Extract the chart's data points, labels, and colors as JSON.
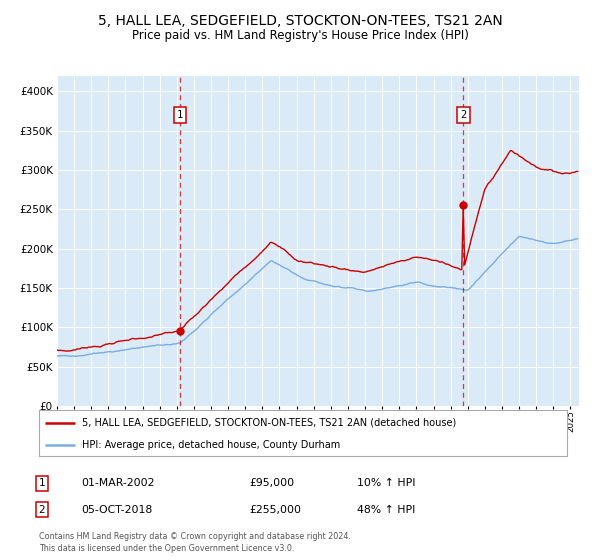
{
  "title": "5, HALL LEA, SEDGEFIELD, STOCKTON-ON-TEES, TS21 2AN",
  "subtitle": "Price paid vs. HM Land Registry's House Price Index (HPI)",
  "title_fontsize": 10,
  "subtitle_fontsize": 8.5,
  "bg_color": "#daeaf7",
  "red_color": "#cc0000",
  "blue_color": "#7aade0",
  "ylim": [
    0,
    420000
  ],
  "yticks": [
    0,
    50000,
    100000,
    150000,
    200000,
    250000,
    300000,
    350000,
    400000
  ],
  "sale1_year": 2002.17,
  "sale1_price": 95000,
  "sale2_year": 2018.75,
  "sale2_price": 255000,
  "legend_line1": "5, HALL LEA, SEDGEFIELD, STOCKTON-ON-TEES, TS21 2AN (detached house)",
  "legend_line2": "HPI: Average price, detached house, County Durham",
  "table_row1_num": "1",
  "table_row1_date": "01-MAR-2002",
  "table_row1_price": "£95,000",
  "table_row1_hpi": "10% ↑ HPI",
  "table_row2_num": "2",
  "table_row2_date": "05-OCT-2018",
  "table_row2_price": "£255,000",
  "table_row2_hpi": "48% ↑ HPI",
  "footer": "Contains HM Land Registry data © Crown copyright and database right 2024.\nThis data is licensed under the Open Government Licence v3.0.",
  "xstart": 1995.0,
  "xend": 2025.5
}
